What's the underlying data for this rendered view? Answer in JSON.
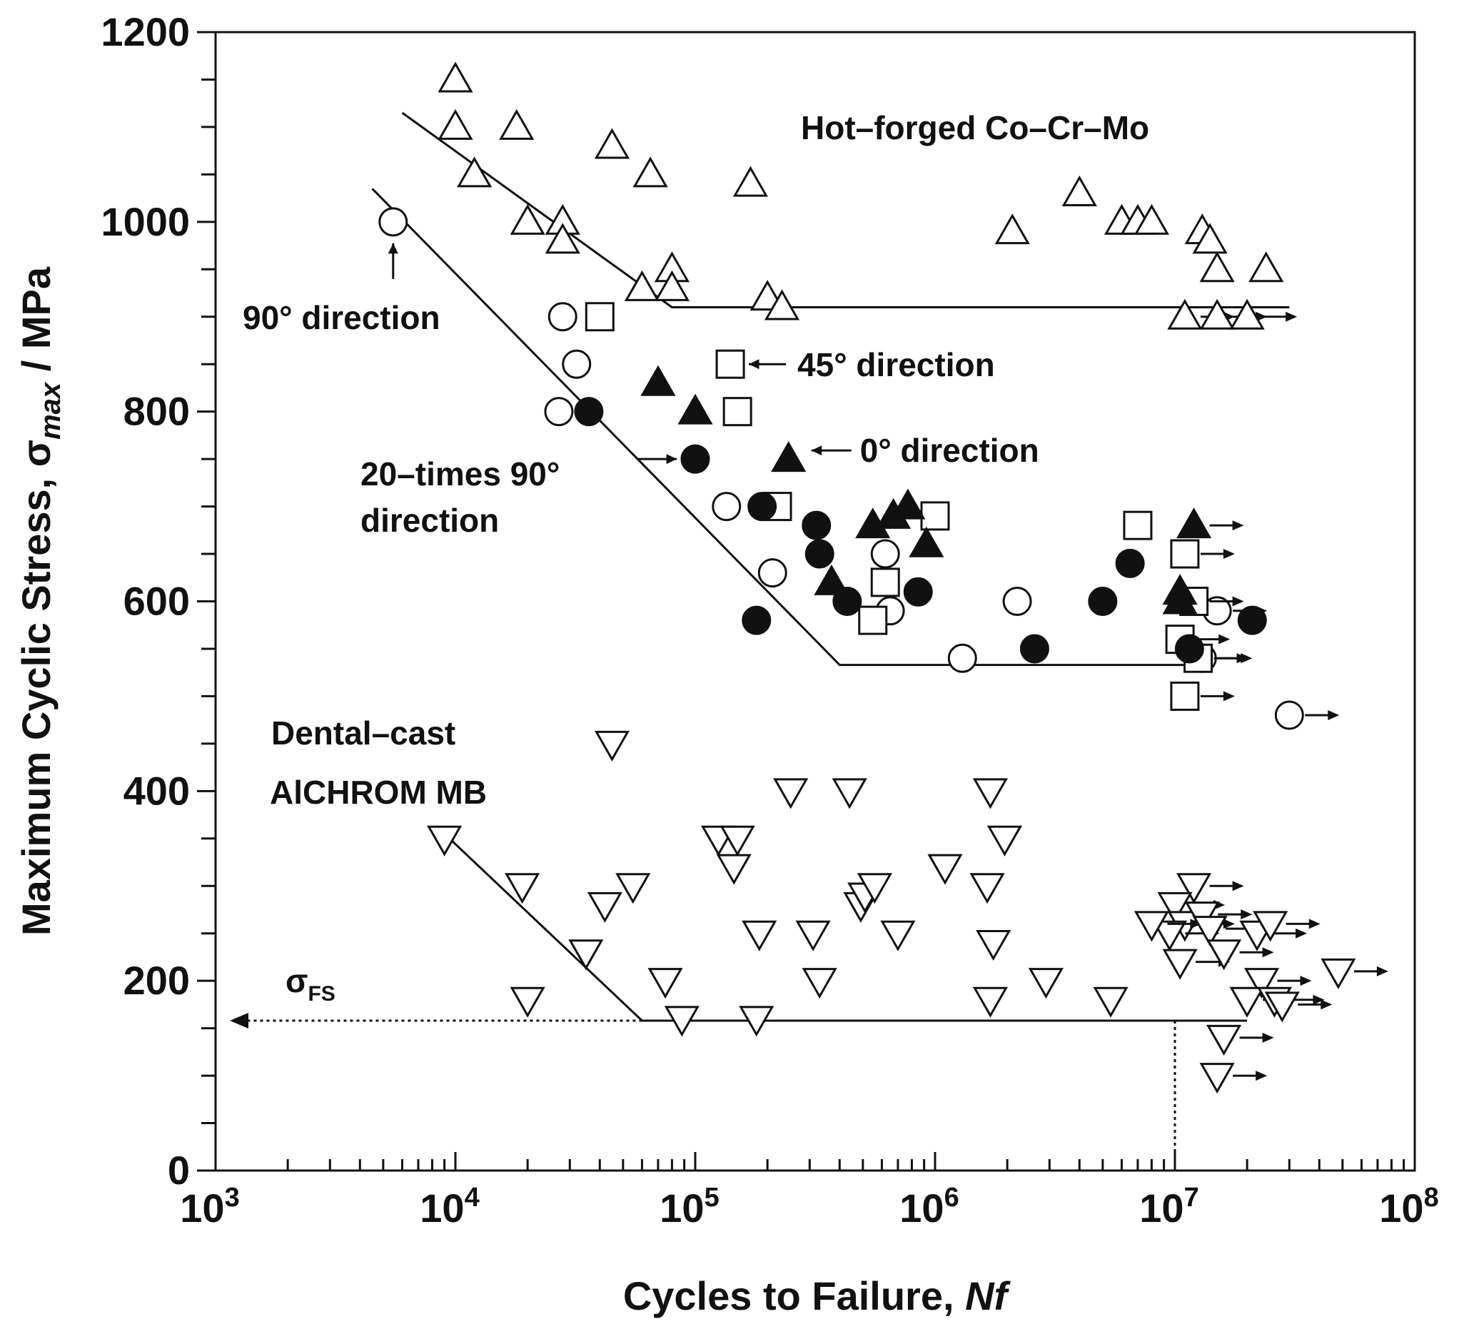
{
  "chart_data": {
    "type": "scatter",
    "xscale": "log",
    "xlim": [
      1000,
      100000000
    ],
    "ylim": [
      0,
      1200
    ],
    "xlabel": "Cycles to Failure, ",
    "xlabel_italic": "Nf",
    "ylabel": "Maximum Cyclic Stress, σ",
    "ylabel_sub": "max",
    "ylabel_unit": " / MPa",
    "y_ticks": [
      0,
      200,
      400,
      600,
      800,
      1000,
      1200
    ],
    "x_tick_base": "10",
    "x_tick_exponents": [
      "3",
      "4",
      "5",
      "6",
      "7",
      "8"
    ],
    "series": [
      {
        "name": "Hot–forged Co–Cr–Mo",
        "marker": "triangle-up-open",
        "points": [
          [
            10000,
            1150
          ],
          [
            10000,
            1100
          ],
          [
            12000,
            1050
          ],
          [
            18000,
            1100
          ],
          [
            20000,
            1000
          ],
          [
            28000,
            1000
          ],
          [
            28000,
            980
          ],
          [
            45000,
            1080
          ],
          [
            65000,
            1050
          ],
          [
            60000,
            930
          ],
          [
            80000,
            950
          ],
          [
            80000,
            930
          ],
          [
            170000,
            1040
          ],
          [
            200000,
            920
          ],
          [
            230000,
            910
          ],
          [
            2100000,
            990
          ],
          [
            4000000,
            1030
          ],
          [
            6000000,
            1000
          ],
          [
            7000000,
            1000
          ],
          [
            8000000,
            1000
          ],
          [
            13000000,
            990
          ],
          [
            14000000,
            980
          ],
          [
            15000000,
            950
          ],
          [
            24000000,
            950
          ]
        ],
        "runouts": [
          [
            11000000,
            900
          ],
          [
            15000000,
            900
          ],
          [
            20000000,
            900
          ]
        ],
        "fit": [
          [
            6000,
            1115
          ],
          [
            80000,
            910
          ],
          [
            30000000,
            910
          ]
        ]
      },
      {
        "name": "90° direction",
        "marker": "circle-open",
        "points": [
          [
            5500,
            1000
          ],
          [
            28000,
            900
          ],
          [
            32000,
            850
          ],
          [
            27000,
            800
          ],
          [
            135000,
            700
          ],
          [
            210000,
            630
          ],
          [
            620000,
            650
          ],
          [
            650000,
            590
          ],
          [
            1300000,
            540
          ],
          [
            2200000,
            600
          ]
        ],
        "runouts": [
          [
            15000000,
            590
          ],
          [
            13000000,
            540
          ],
          [
            30000000,
            480
          ]
        ],
        "fit": [
          [
            4500,
            1035
          ],
          [
            400000,
            533
          ],
          [
            12000000,
            533
          ]
        ]
      },
      {
        "name": "20–times 90° direction",
        "marker": "circle-filled",
        "points": [
          [
            36000,
            800
          ],
          [
            100000,
            750
          ],
          [
            190000,
            700
          ],
          [
            180000,
            580
          ],
          [
            320000,
            680
          ],
          [
            330000,
            650
          ],
          [
            430000,
            600
          ],
          [
            850000,
            610
          ],
          [
            2600000,
            550
          ],
          [
            5000000,
            600
          ],
          [
            6500000,
            640
          ],
          [
            11500000,
            550
          ],
          [
            21000000,
            580
          ]
        ],
        "runouts": []
      },
      {
        "name": "45° direction",
        "marker": "square-open",
        "points": [
          [
            40000,
            900
          ],
          [
            140000,
            850
          ],
          [
            150000,
            800
          ],
          [
            220000,
            700
          ],
          [
            620000,
            620
          ],
          [
            550000,
            580
          ],
          [
            1000000,
            690
          ],
          [
            7000000,
            680
          ]
        ],
        "runouts": [
          [
            11000000,
            650
          ],
          [
            12000000,
            600
          ],
          [
            10500000,
            560
          ],
          [
            12500000,
            540
          ],
          [
            11000000,
            500
          ]
        ]
      },
      {
        "name": "0° direction",
        "marker": "triangle-up-filled",
        "points": [
          [
            70000,
            830
          ],
          [
            100000,
            800
          ],
          [
            245000,
            750
          ],
          [
            370000,
            620
          ],
          [
            550000,
            680
          ],
          [
            670000,
            690
          ],
          [
            770000,
            700
          ],
          [
            920000,
            660
          ],
          [
            10500000,
            600
          ],
          [
            10500000,
            610
          ]
        ],
        "runouts": [
          [
            12000000,
            680
          ]
        ]
      },
      {
        "name": "Dental–cast AlCHROM MB",
        "marker": "triangle-down-open",
        "points": [
          [
            9000,
            350
          ],
          [
            19000,
            300
          ],
          [
            20000,
            180
          ],
          [
            35000,
            230
          ],
          [
            42000,
            280
          ],
          [
            45000,
            450
          ],
          [
            55000,
            300
          ],
          [
            75000,
            200
          ],
          [
            88000,
            160
          ],
          [
            125000,
            350
          ],
          [
            150000,
            350
          ],
          [
            145000,
            320
          ],
          [
            185000,
            250
          ],
          [
            180000,
            160
          ],
          [
            250000,
            400
          ],
          [
            310000,
            250
          ],
          [
            330000,
            200
          ],
          [
            440000,
            400
          ],
          [
            490000,
            280
          ],
          [
            510000,
            290
          ],
          [
            560000,
            300
          ],
          [
            700000,
            250
          ],
          [
            1100000,
            320
          ],
          [
            1700000,
            400
          ],
          [
            1650000,
            300
          ],
          [
            1750000,
            240
          ],
          [
            1700000,
            180
          ],
          [
            1950000,
            350
          ],
          [
            2900000,
            200
          ],
          [
            5400000,
            180
          ]
        ],
        "runouts": [
          [
            12000000,
            300
          ],
          [
            10000000,
            280
          ],
          [
            11000000,
            260
          ],
          [
            9500000,
            250
          ],
          [
            8000000,
            260
          ],
          [
            10500000,
            220
          ],
          [
            13000000,
            270
          ],
          [
            14000000,
            255
          ],
          [
            16000000,
            230
          ],
          [
            22000000,
            250
          ],
          [
            25000000,
            260
          ],
          [
            23000000,
            200
          ],
          [
            20000000,
            180
          ],
          [
            26000000,
            180
          ],
          [
            28000000,
            175
          ],
          [
            16000000,
            140
          ],
          [
            15000000,
            100
          ],
          [
            48000000,
            210
          ]
        ],
        "fit": [
          [
            9000,
            355
          ],
          [
            60000,
            158
          ],
          [
            20000000,
            158
          ]
        ]
      }
    ],
    "fatigue_strength": {
      "label": "σ",
      "label_sub": "FS",
      "value": 158,
      "from_x": 60000,
      "drop_x": 10000000
    },
    "annotations": [
      {
        "text": "90° direction",
        "target": [
          5500,
          1000
        ]
      },
      {
        "text": "45° direction",
        "target": [
          140000,
          850
        ]
      },
      {
        "text": "0° direction",
        "target": [
          245000,
          750
        ]
      },
      {
        "text": "20–times 90°",
        "text2": "direction",
        "target": [
          100000,
          750
        ]
      }
    ],
    "legend": "none"
  }
}
